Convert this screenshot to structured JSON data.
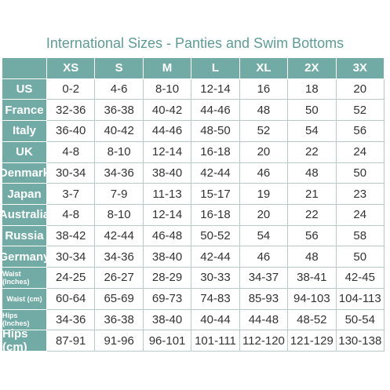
{
  "title": "International Sizes - Panties and Swim Bottoms",
  "table": {
    "columns": [
      "XS",
      "S",
      "M",
      "L",
      "XL",
      "2X",
      "3X"
    ],
    "rows": [
      [
        "US",
        "0-2",
        "4-6",
        "8-10",
        "12-14",
        "16",
        "18",
        "20"
      ],
      [
        "France",
        "32-36",
        "36-38",
        "40-42",
        "44-46",
        "48",
        "50",
        "52"
      ],
      [
        "Italy",
        "36-40",
        "40-42",
        "44-46",
        "48-50",
        "52",
        "54",
        "56"
      ],
      [
        "UK",
        "4-8",
        "8-10",
        "12-14",
        "16-18",
        "20",
        "22",
        "24"
      ],
      [
        "Denmark",
        "30-34",
        "34-36",
        "38-40",
        "42-44",
        "46",
        "48",
        "50"
      ],
      [
        "Japan",
        "3-7",
        "7-9",
        "11-13",
        "15-17",
        "19",
        "21",
        "23"
      ],
      [
        "Australia",
        "4-8",
        "8-10",
        "12-14",
        "16-18",
        "20",
        "22",
        "24"
      ],
      [
        "Russia",
        "38-42",
        "42-44",
        "46-48",
        "50-52",
        "54",
        "56",
        "58"
      ],
      [
        "Germany",
        "30-34",
        "34-36",
        "38-40",
        "42-44",
        "46",
        "48",
        "50"
      ],
      [
        "Waist (Inches)",
        "24-25",
        "26-27",
        "28-29",
        "30-33",
        "34-37",
        "38-41",
        "42-45"
      ],
      [
        "Waist (cm)",
        "60-64",
        "65-69",
        "69-73",
        "74-83",
        "85-93",
        "94-103",
        "104-113"
      ],
      [
        "Hips (Inches)",
        "34-36",
        "36-38",
        "38-40",
        "40-44",
        "44-48",
        "48-52",
        "50-54"
      ],
      [
        "Hips (cm)",
        "87-91",
        "91-96",
        "96-101",
        "101-111",
        "112-120",
        "121-129",
        "130-138"
      ]
    ]
  }
}
